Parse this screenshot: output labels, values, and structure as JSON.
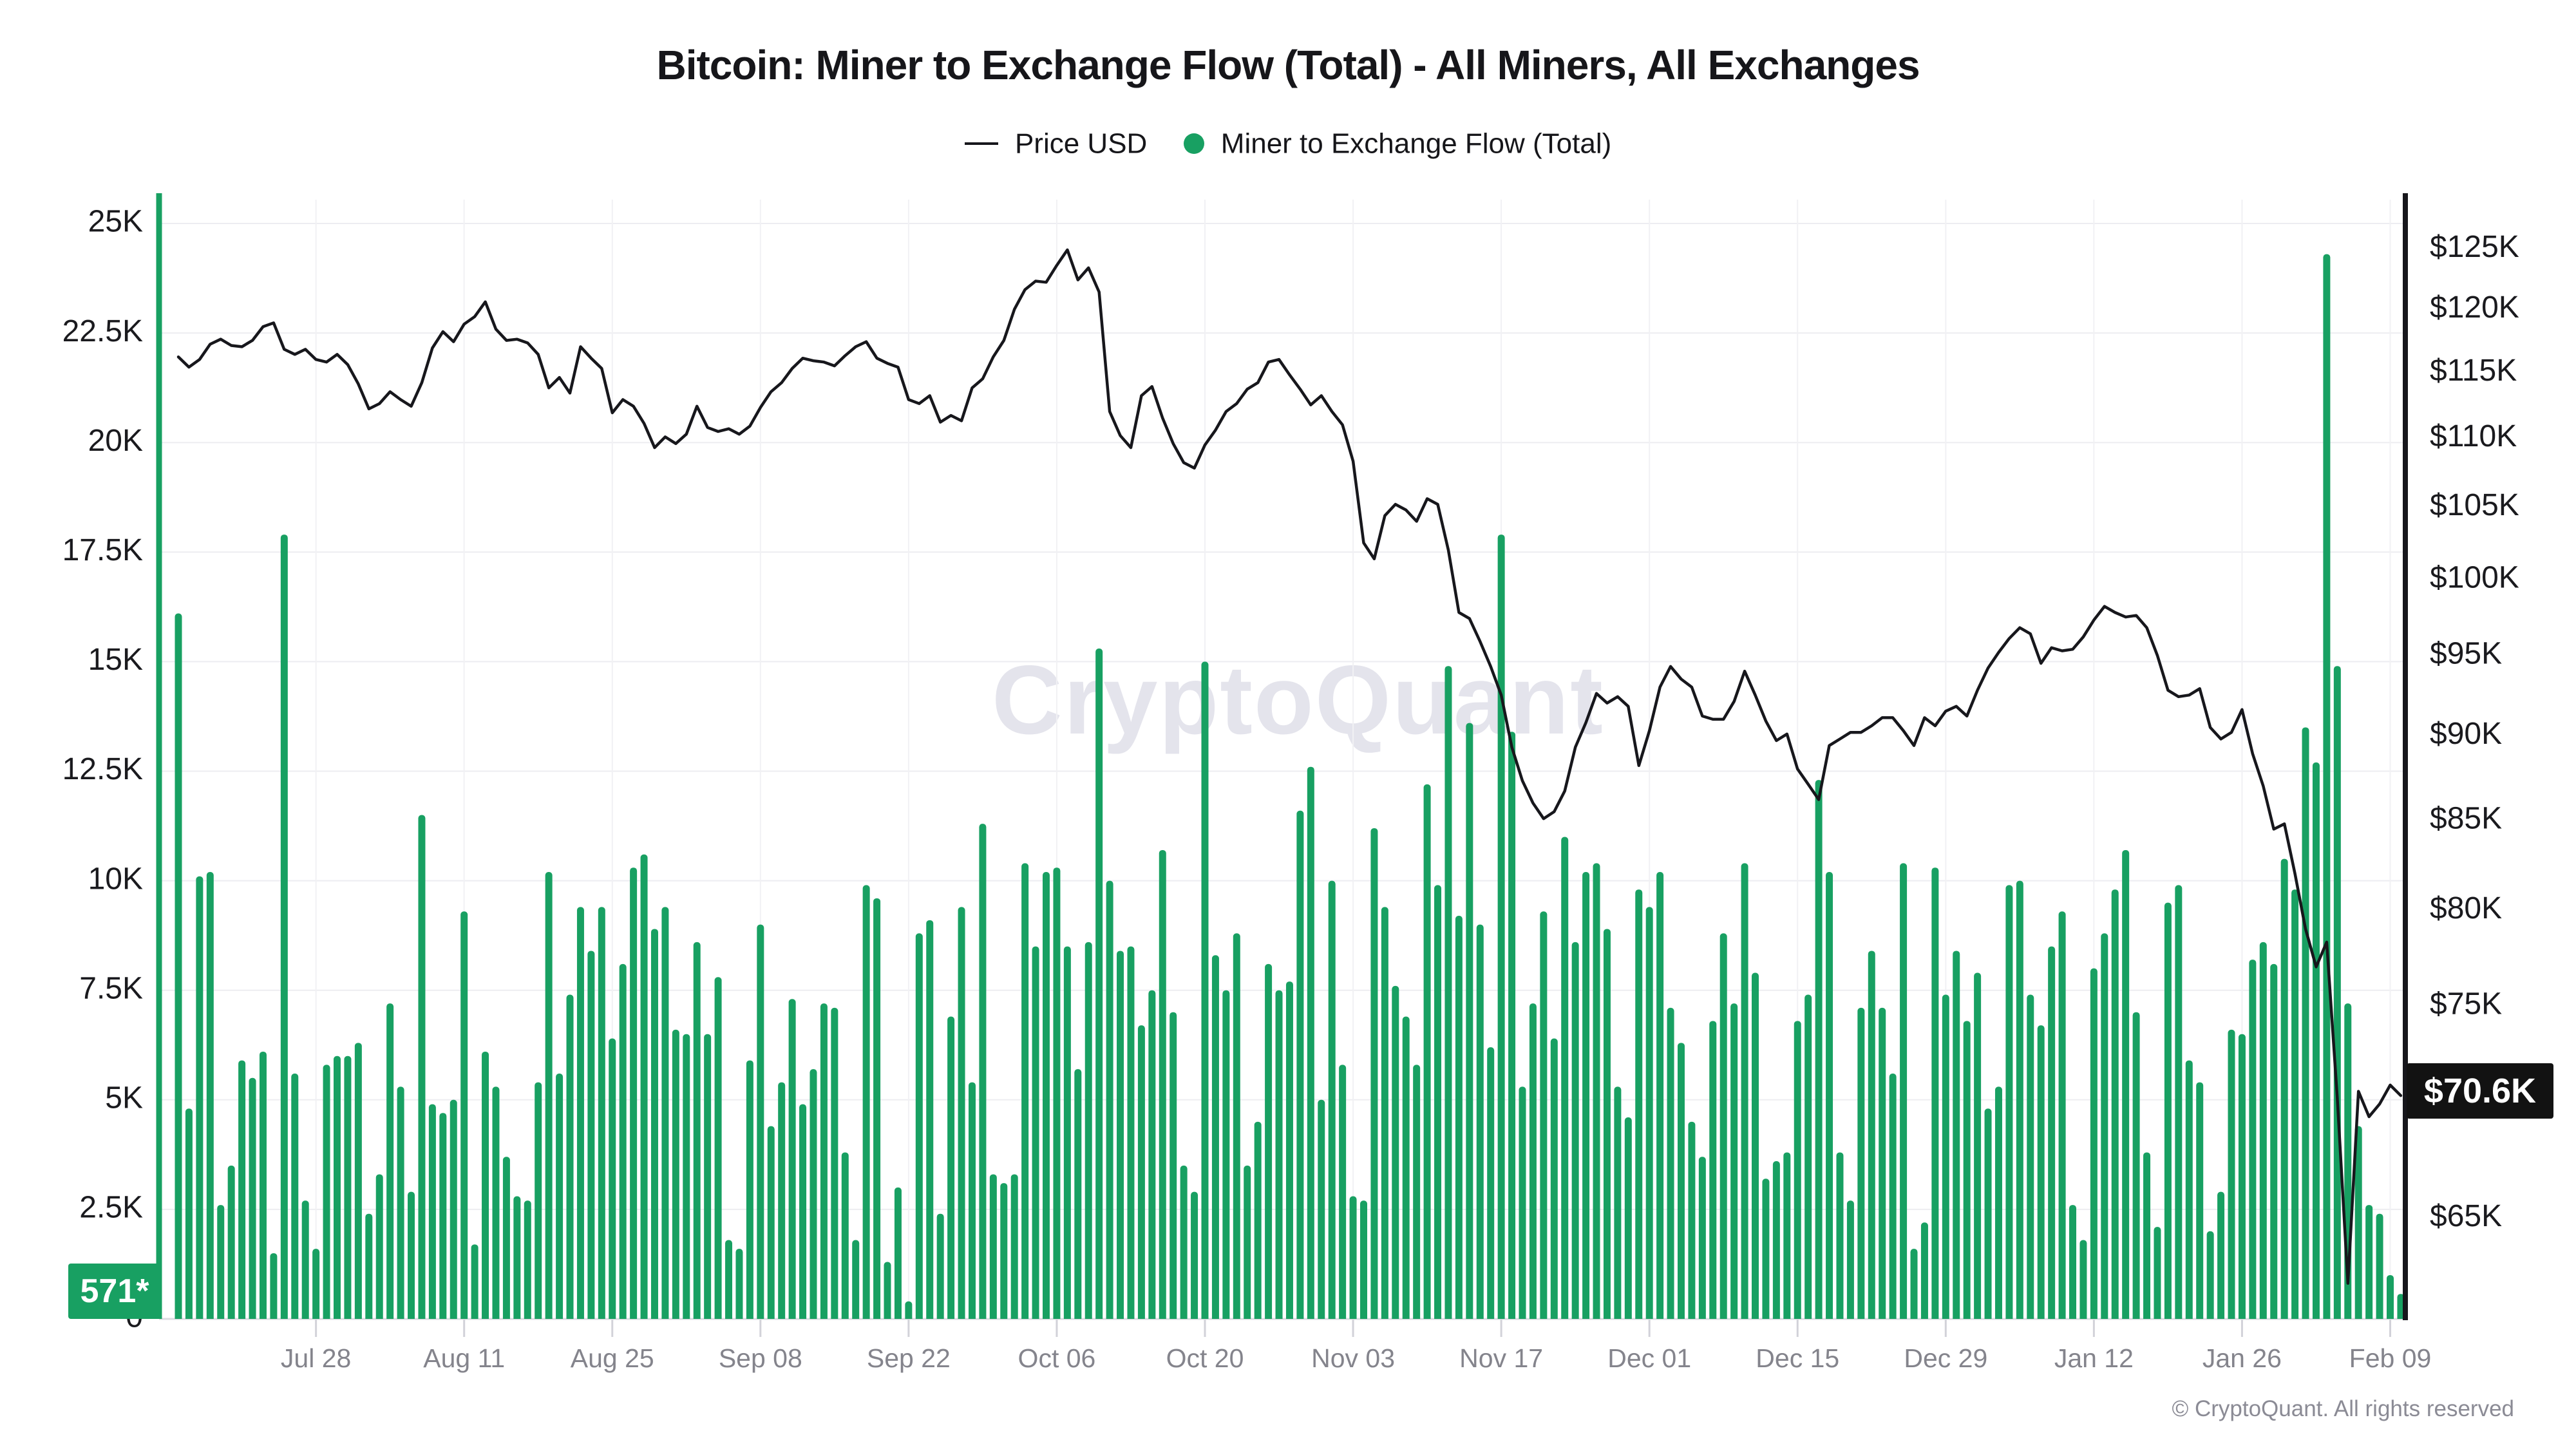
{
  "title": "Bitcoin: Miner to Exchange Flow (Total) - All Miners, All Exchanges",
  "legend": {
    "price": {
      "label": "Price USD"
    },
    "flow": {
      "label": "Miner to Exchange Flow (Total)"
    }
  },
  "badges": {
    "flow_latest": "571*",
    "price_latest": "$70.6K"
  },
  "watermark": "CryptoQuant",
  "credit": "© CryptoQuant. All rights reserved",
  "colors": {
    "bar_green": "#18A062",
    "price_line": "#17171c",
    "grid": "#EDEDF1",
    "axis_bottom": "#DCDCE1",
    "tick_mark": "#D2D2D9",
    "x_label": "#84848C",
    "y_label": "#1A1A1E",
    "right_axis_line": "#17171c",
    "price_badge_bg": "#121212",
    "watermark": "#E4E4EC",
    "credit": "#8B8B95"
  },
  "chart_data": {
    "type": "bar",
    "subtype": "bar+line dual axis, daily data Jul 15 - Feb 10",
    "title": "Bitcoin: Miner to Exchange Flow (Total) - All Miners, All Exchanges",
    "legend_position": "top",
    "grid": true,
    "x_ticks": [
      {
        "label": "Jul 28",
        "index": 13
      },
      {
        "label": "Aug 11",
        "index": 27
      },
      {
        "label": "Aug 25",
        "index": 41
      },
      {
        "label": "Sep 08",
        "index": 55
      },
      {
        "label": "Sep 22",
        "index": 69
      },
      {
        "label": "Oct 06",
        "index": 83
      },
      {
        "label": "Oct 20",
        "index": 97
      },
      {
        "label": "Nov 03",
        "index": 111
      },
      {
        "label": "Nov 17",
        "index": 125
      },
      {
        "label": "Dec 01",
        "index": 139
      },
      {
        "label": "Dec 15",
        "index": 153
      },
      {
        "label": "Dec 29",
        "index": 167
      },
      {
        "label": "Jan 12",
        "index": 181
      },
      {
        "label": "Jan 26",
        "index": 195
      },
      {
        "label": "Feb 09",
        "index": 209
      }
    ],
    "y_left": {
      "name": "Miner to Exchange Flow (Total), K BTC",
      "scale": "linear",
      "range": [
        0,
        25.7
      ],
      "ticks": [
        {
          "label": "0",
          "v": 0
        },
        {
          "label": "2.5K",
          "v": 2.5
        },
        {
          "label": "5K",
          "v": 5
        },
        {
          "label": "7.5K",
          "v": 7.5
        },
        {
          "label": "10K",
          "v": 10
        },
        {
          "label": "12.5K",
          "v": 12.5
        },
        {
          "label": "15K",
          "v": 15
        },
        {
          "label": "17.5K",
          "v": 17.5
        },
        {
          "label": "20K",
          "v": 20
        },
        {
          "label": "22.5K",
          "v": 22.5
        },
        {
          "label": "25K",
          "v": 25
        }
      ]
    },
    "y_right": {
      "name": "Price USD, $K",
      "scale": "log",
      "range_k": [
        60.7,
        127.2
      ],
      "ticks": [
        {
          "label": "$65K",
          "v": 65
        },
        {
          "label": "$70K",
          "v": 70
        },
        {
          "label": "$75K",
          "v": 75
        },
        {
          "label": "$80K",
          "v": 80
        },
        {
          "label": "$85K",
          "v": 85
        },
        {
          "label": "$90K",
          "v": 90
        },
        {
          "label": "$95K",
          "v": 95
        },
        {
          "label": "$100K",
          "v": 100
        },
        {
          "label": "$105K",
          "v": 105
        },
        {
          "label": "$110K",
          "v": 110
        },
        {
          "label": "$115K",
          "v": 115
        },
        {
          "label": "$120K",
          "v": 120
        },
        {
          "label": "$125K",
          "v": 125
        }
      ]
    },
    "series": [
      {
        "name": "Miner to Exchange Flow (Total)",
        "type": "bar",
        "axis": "left",
        "unit": "K BTC per day",
        "latest_value": 0.571,
        "values": [
          16.1,
          4.8,
          10.1,
          10.2,
          2.6,
          3.5,
          5.9,
          5.5,
          6.1,
          1.5,
          17.9,
          5.6,
          2.7,
          1.6,
          5.8,
          6.0,
          6.0,
          6.3,
          2.4,
          3.3,
          7.2,
          5.3,
          2.9,
          11.5,
          4.9,
          4.7,
          5.0,
          9.3,
          1.7,
          6.1,
          5.3,
          3.7,
          2.8,
          2.7,
          5.4,
          10.2,
          5.6,
          7.4,
          9.4,
          8.4,
          9.4,
          6.4,
          8.1,
          10.3,
          10.6,
          8.9,
          9.4,
          6.6,
          6.5,
          8.6,
          6.5,
          7.8,
          1.8,
          1.6,
          5.9,
          9.0,
          4.4,
          5.4,
          7.3,
          4.9,
          5.7,
          7.2,
          7.1,
          3.8,
          1.8,
          9.9,
          9.6,
          1.3,
          3.0,
          0.4,
          8.8,
          9.1,
          2.4,
          6.9,
          9.4,
          5.4,
          11.3,
          3.3,
          3.1,
          3.3,
          10.4,
          8.5,
          10.2,
          10.3,
          8.5,
          5.7,
          8.6,
          15.3,
          10.0,
          8.4,
          8.5,
          6.7,
          7.5,
          10.7,
          7.0,
          3.5,
          2.9,
          15.0,
          8.3,
          7.5,
          8.8,
          3.5,
          4.5,
          8.1,
          7.5,
          7.7,
          11.6,
          12.6,
          5.0,
          10.0,
          5.8,
          2.8,
          2.7,
          11.2,
          9.4,
          7.6,
          6.9,
          5.8,
          12.2,
          9.9,
          14.9,
          9.2,
          13.6,
          9.0,
          6.2,
          17.9,
          13.4,
          5.3,
          7.2,
          9.3,
          6.4,
          11.0,
          8.6,
          10.2,
          10.4,
          8.9,
          5.3,
          4.6,
          9.8,
          9.4,
          10.2,
          7.1,
          6.3,
          4.5,
          3.7,
          6.8,
          8.8,
          7.2,
          10.4,
          7.9,
          3.2,
          3.6,
          3.8,
          6.8,
          7.4,
          12.3,
          10.2,
          3.8,
          2.7,
          7.1,
          8.4,
          7.1,
          5.6,
          10.4,
          1.6,
          2.2,
          10.3,
          7.4,
          8.4,
          6.8,
          7.9,
          4.8,
          5.3,
          9.9,
          10.0,
          7.4,
          6.7,
          8.5,
          9.3,
          2.6,
          1.8,
          8.0,
          8.8,
          9.8,
          10.7,
          7.0,
          3.8,
          2.1,
          9.5,
          9.9,
          5.9,
          5.4,
          2.0,
          2.9,
          6.6,
          6.5,
          8.2,
          8.6,
          8.1,
          10.5,
          9.8,
          13.5,
          12.7,
          24.3,
          14.9,
          7.2,
          4.4,
          2.6,
          2.4,
          1.0,
          0.57
        ]
      },
      {
        "name": "Price USD",
        "type": "line",
        "axis": "right",
        "unit": "$K",
        "latest_value": 70.6,
        "values": [
          116.2,
          115.4,
          116.0,
          117.2,
          117.6,
          117.1,
          117.0,
          117.5,
          118.6,
          118.9,
          116.8,
          116.4,
          116.8,
          116.0,
          115.8,
          116.4,
          115.6,
          114.1,
          112.2,
          112.6,
          113.5,
          112.9,
          112.4,
          114.2,
          116.9,
          118.2,
          117.4,
          118.8,
          119.4,
          120.6,
          118.4,
          117.5,
          117.6,
          117.3,
          116.4,
          113.8,
          114.6,
          113.4,
          117.0,
          116.1,
          115.3,
          111.9,
          112.9,
          112.4,
          111.1,
          109.3,
          110.1,
          109.6,
          110.3,
          112.4,
          110.8,
          110.5,
          110.7,
          110.3,
          110.9,
          112.3,
          113.5,
          114.2,
          115.3,
          116.1,
          115.9,
          115.8,
          115.5,
          116.3,
          117.0,
          117.4,
          116.1,
          115.7,
          115.4,
          112.9,
          112.6,
          113.2,
          111.2,
          111.7,
          111.3,
          113.8,
          114.5,
          116.2,
          117.5,
          120.0,
          121.6,
          122.3,
          122.2,
          123.6,
          124.9,
          122.4,
          123.4,
          121.4,
          112.0,
          110.2,
          109.3,
          113.2,
          113.9,
          111.5,
          109.6,
          108.2,
          107.8,
          109.5,
          110.6,
          112.0,
          112.6,
          113.7,
          114.2,
          115.8,
          116.0,
          114.8,
          113.7,
          112.5,
          113.2,
          112.0,
          111.0,
          108.3,
          102.5,
          101.4,
          104.4,
          105.2,
          104.8,
          104.0,
          105.6,
          105.2,
          102.0,
          97.8,
          97.4,
          95.9,
          94.3,
          92.5,
          89.3,
          87.3,
          86.0,
          85.1,
          85.5,
          86.7,
          89.3,
          90.8,
          92.6,
          92.0,
          92.4,
          91.8,
          88.2,
          90.3,
          93.0,
          94.3,
          93.5,
          93.0,
          91.2,
          91.0,
          91.0,
          92.1,
          94.0,
          92.5,
          90.9,
          89.7,
          90.1,
          88.0,
          87.1,
          86.2,
          89.4,
          89.8,
          90.2,
          90.2,
          90.6,
          91.1,
          91.1,
          90.3,
          89.4,
          91.1,
          90.6,
          91.5,
          91.8,
          91.2,
          92.8,
          94.2,
          95.2,
          96.1,
          96.8,
          96.4,
          94.5,
          95.5,
          95.3,
          95.4,
          96.2,
          97.3,
          98.2,
          97.8,
          97.5,
          97.6,
          96.8,
          95.0,
          92.8,
          92.4,
          92.5,
          92.9,
          90.5,
          89.8,
          90.2,
          91.6,
          88.9,
          87.0,
          84.5,
          84.8,
          82.0,
          79.0,
          77.0,
          78.3,
          70.5,
          62.2,
          70.8,
          69.6,
          70.2,
          71.1,
          70.6
        ]
      }
    ]
  }
}
